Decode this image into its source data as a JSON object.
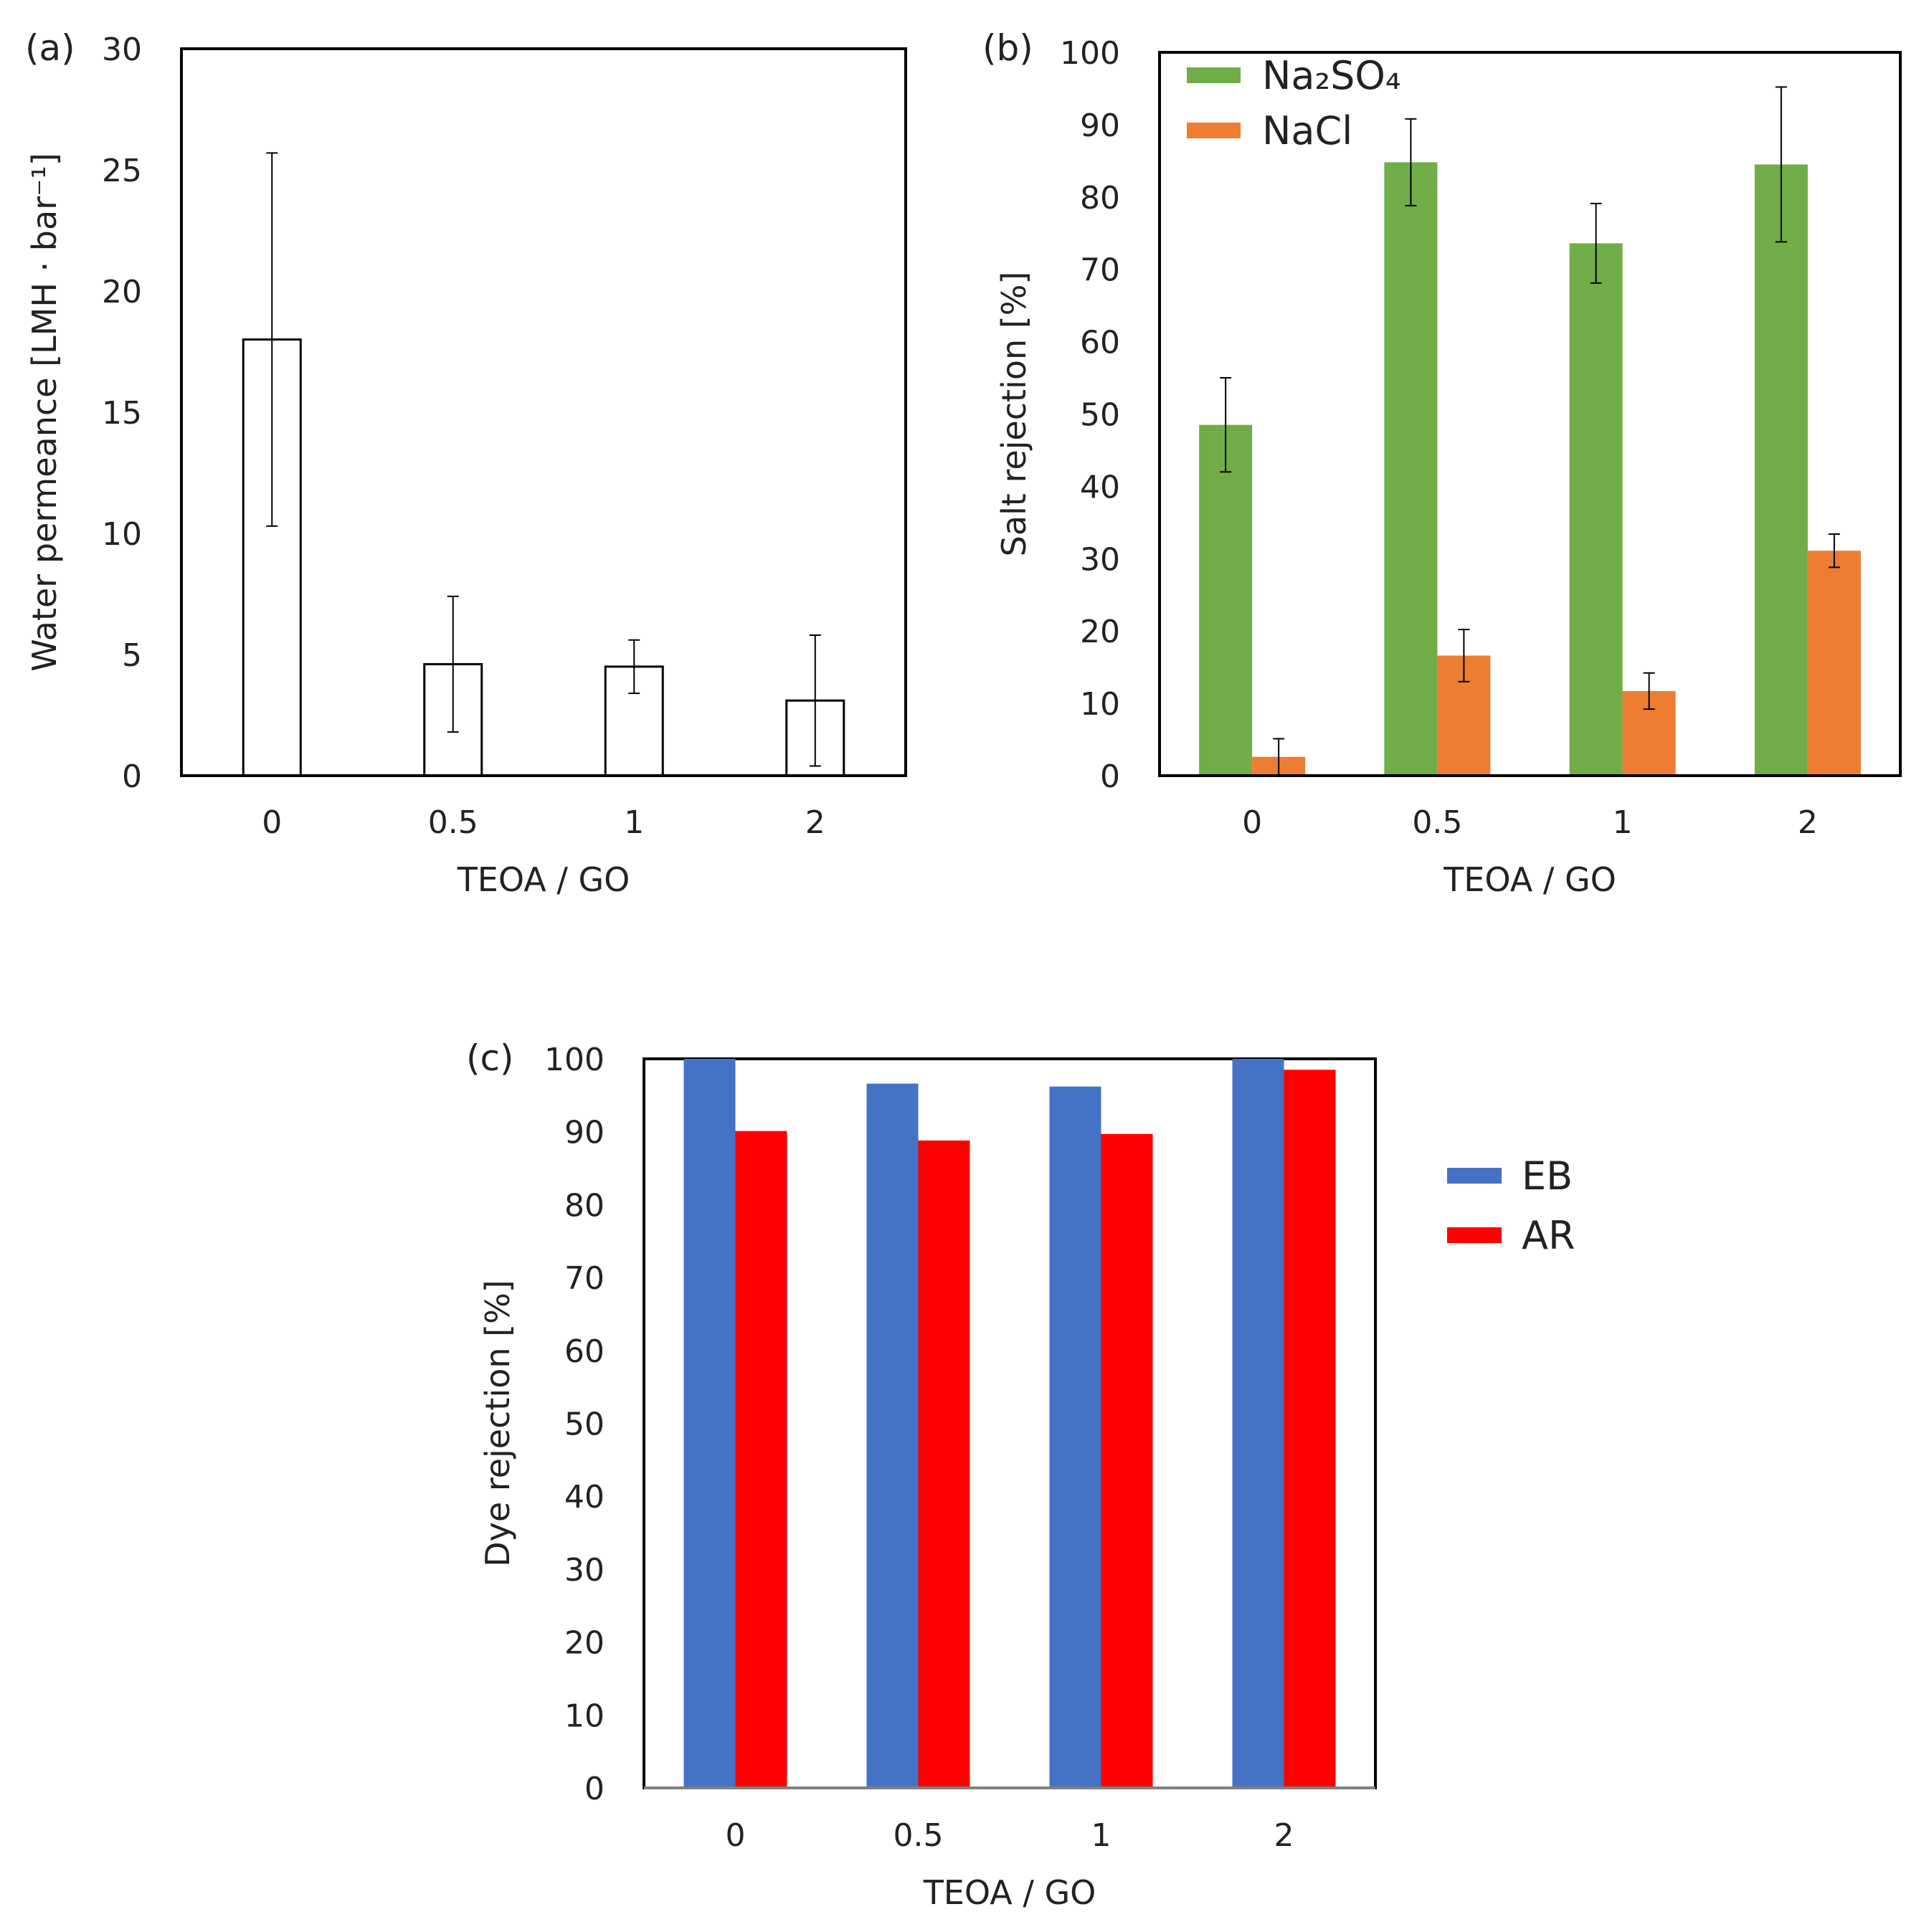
{
  "chart_data": [
    {
      "panel": "(a)",
      "type": "bar",
      "xlabel": "TEOA / GO",
      "ylabel": "Water permeance [LMH · bar⁻¹]",
      "categories": [
        "0",
        "0.5",
        "1",
        "2"
      ],
      "ylim": [
        0,
        30
      ],
      "yticks": [
        "0",
        "5",
        "10",
        "15",
        "20",
        "25",
        "30"
      ],
      "series": [
        {
          "name": "Water permeance",
          "values": [
            18.0,
            4.6,
            4.5,
            3.1
          ],
          "errors": [
            7.7,
            2.8,
            1.1,
            2.7
          ],
          "color": "#ffffff",
          "stroke": "#000000"
        }
      ]
    },
    {
      "panel": "(b)",
      "type": "bar",
      "xlabel": "TEOA / GO",
      "ylabel": "Salt rejection [%]",
      "categories": [
        "0",
        "0.5",
        "1",
        "2"
      ],
      "ylim": [
        0,
        100
      ],
      "yticks": [
        "0",
        "10",
        "20",
        "30",
        "40",
        "50",
        "60",
        "70",
        "80",
        "90",
        "100"
      ],
      "legend_position": "top-left",
      "series": [
        {
          "name": "Na₂SO₄",
          "values": [
            48.5,
            84.8,
            73.6,
            84.5
          ],
          "errors": [
            6.5,
            6.0,
            5.5,
            10.7
          ],
          "color": "#70ad47"
        },
        {
          "name": "NaCl",
          "values": [
            2.6,
            16.6,
            11.7,
            31.1
          ],
          "errors": [
            2.5,
            3.6,
            2.5,
            2.3
          ],
          "color": "#ed7d31"
        }
      ]
    },
    {
      "panel": "(c)",
      "type": "bar",
      "xlabel": "TEOA / GO",
      "ylabel": "Dye rejection [%]",
      "categories": [
        "0",
        "0.5",
        "1",
        "2"
      ],
      "ylim": [
        0,
        100
      ],
      "yticks": [
        "0",
        "10",
        "20",
        "30",
        "40",
        "50",
        "60",
        "70",
        "80",
        "90",
        "100"
      ],
      "legend_position": "right",
      "series": [
        {
          "name": "EB",
          "values": [
            100.0,
            96.6,
            96.2,
            100.0
          ],
          "color": "#4472c4"
        },
        {
          "name": "AR",
          "values": [
            90.1,
            88.8,
            89.7,
            98.5
          ],
          "color": "#ff0000"
        }
      ]
    }
  ]
}
